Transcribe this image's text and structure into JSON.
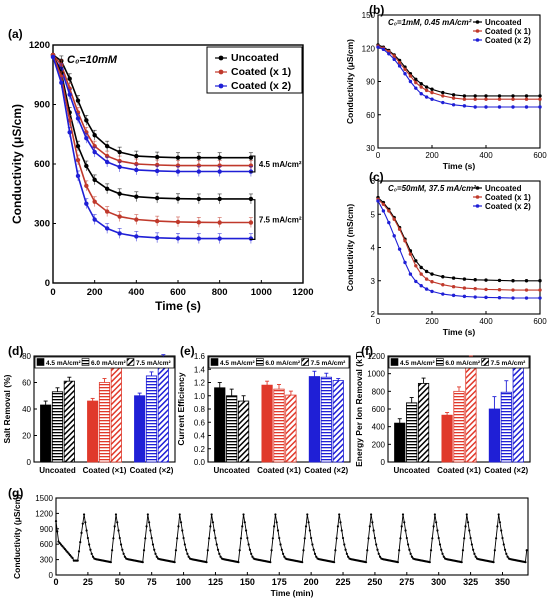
{
  "chart_data": [
    {
      "id": "a",
      "panel_label": "(a)",
      "type": "line",
      "xlabel": "Time (s)",
      "ylabel": "Conductivity (μS/cm)",
      "xlim": [
        0,
        1200
      ],
      "ylim": [
        0,
        1200
      ],
      "xticks": [
        0,
        200,
        400,
        600,
        800,
        1000,
        1200
      ],
      "yticks": [
        0,
        300,
        600,
        900,
        1200
      ],
      "annotation": "C₀=10mM",
      "legend": {
        "placement": "top-right",
        "entries": [
          "Uncoated",
          "Coated (x 1)",
          "Coated (x 2)"
        ]
      },
      "brackets": [
        {
          "label": "4.5 mA/cm²",
          "y_range": [
            560,
            640
          ]
        },
        {
          "label": "7.5 mA/cm²",
          "y_range": [
            220,
            420
          ]
        }
      ],
      "series": [
        {
          "name": "Uncoated",
          "color": "#000000",
          "group": "4.5 mA/cm²",
          "x": [
            0,
            40,
            80,
            120,
            160,
            200,
            260,
            320,
            400,
            500,
            600,
            700,
            800,
            950
          ],
          "y": [
            1150,
            1120,
            1030,
            920,
            820,
            745,
            690,
            660,
            640,
            635,
            632,
            632,
            632,
            632
          ]
        },
        {
          "name": "Coated (x 1)",
          "color": "#c0392b",
          "group": "4.5 mA/cm²",
          "x": [
            0,
            40,
            80,
            120,
            160,
            200,
            260,
            320,
            400,
            500,
            600,
            700,
            800,
            950
          ],
          "y": [
            1150,
            1100,
            980,
            860,
            760,
            690,
            640,
            615,
            600,
            595,
            592,
            592,
            592,
            592
          ]
        },
        {
          "name": "Coated (x 2)",
          "color": "#1f1fd6",
          "group": "4.5 mA/cm²",
          "x": [
            0,
            40,
            80,
            120,
            160,
            200,
            260,
            320,
            400,
            500,
            600,
            700,
            800,
            950
          ],
          "y": [
            1140,
            1080,
            950,
            830,
            730,
            660,
            610,
            585,
            570,
            565,
            562,
            562,
            562,
            562
          ]
        },
        {
          "name": "Uncoated",
          "color": "#000000",
          "group": "7.5 mA/cm²",
          "x": [
            0,
            40,
            80,
            120,
            160,
            200,
            260,
            320,
            400,
            500,
            600,
            700,
            800,
            950
          ],
          "y": [
            1150,
            1060,
            860,
            690,
            590,
            520,
            475,
            450,
            435,
            428,
            425,
            424,
            424,
            424
          ]
        },
        {
          "name": "Coated (x 1)",
          "color": "#c0392b",
          "group": "7.5 mA/cm²",
          "x": [
            0,
            40,
            80,
            120,
            160,
            200,
            260,
            320,
            400,
            500,
            600,
            700,
            800,
            950
          ],
          "y": [
            1150,
            1040,
            820,
            620,
            490,
            410,
            360,
            335,
            320,
            312,
            308,
            306,
            305,
            305
          ]
        },
        {
          "name": "Coated (x 2)",
          "color": "#1f1fd6",
          "group": "7.5 mA/cm²",
          "x": [
            0,
            40,
            80,
            120,
            160,
            200,
            260,
            320,
            400,
            500,
            600,
            700,
            800,
            950
          ],
          "y": [
            1140,
            1010,
            760,
            540,
            400,
            320,
            275,
            250,
            235,
            228,
            225,
            224,
            224,
            224
          ]
        }
      ]
    },
    {
      "id": "b",
      "panel_label": "(b)",
      "type": "line",
      "xlabel": "Time (s)",
      "ylabel": "Conductivity (μS/cm)",
      "xlim": [
        0,
        600
      ],
      "ylim": [
        30,
        150
      ],
      "xticks": [
        0,
        200,
        400,
        600
      ],
      "yticks": [
        30,
        60,
        90,
        120,
        150
      ],
      "annotation": "C₀=1mM, 0.45 mA/cm²",
      "legend": {
        "placement": "top-right",
        "entries": [
          "Uncoated",
          "Coated (x 1)",
          "Coated (x 2)"
        ]
      },
      "series": [
        {
          "name": "Uncoated",
          "color": "#000000",
          "x": [
            0,
            20,
            40,
            60,
            80,
            100,
            120,
            140,
            160,
            180,
            200,
            240,
            280,
            320,
            360,
            400,
            450,
            500,
            550,
            600
          ],
          "y": [
            123,
            121,
            118,
            114,
            109,
            103,
            97,
            92,
            88,
            85,
            83,
            80,
            78,
            77,
            77,
            77,
            77,
            77,
            77,
            77
          ]
        },
        {
          "name": "Coated (x 1)",
          "color": "#c0392b",
          "x": [
            0,
            20,
            40,
            60,
            80,
            100,
            120,
            140,
            160,
            180,
            200,
            240,
            280,
            320,
            360,
            400,
            450,
            500,
            550,
            600
          ],
          "y": [
            122,
            120,
            117,
            113,
            107,
            101,
            95,
            89,
            85,
            82,
            80,
            77,
            75,
            74,
            74,
            74,
            74,
            74,
            74,
            74
          ]
        },
        {
          "name": "Coated (x 2)",
          "color": "#1f1fd6",
          "x": [
            0,
            20,
            40,
            60,
            80,
            100,
            120,
            140,
            160,
            180,
            200,
            240,
            280,
            320,
            360,
            400,
            450,
            500,
            550,
            600
          ],
          "y": [
            121,
            119,
            115,
            110,
            104,
            97,
            90,
            84,
            79,
            76,
            74,
            71,
            69,
            68,
            67,
            67,
            67,
            67,
            67,
            67
          ]
        }
      ]
    },
    {
      "id": "c",
      "panel_label": "(c)",
      "type": "line",
      "xlabel": "Time (s)",
      "ylabel": "Conductivity (mS/cm)",
      "xlim": [
        0,
        600
      ],
      "ylim": [
        2,
        6
      ],
      "xticks": [
        0,
        200,
        400,
        600
      ],
      "yticks": [
        2,
        3,
        4,
        5,
        6
      ],
      "annotation": "C₀=50mM, 37.5 mA/cm²",
      "legend": {
        "placement": "top-right",
        "entries": [
          "Uncoated",
          "Coated (x 1)",
          "Coated (x 2)"
        ]
      },
      "series": [
        {
          "name": "Uncoated",
          "color": "#000000",
          "x": [
            0,
            20,
            40,
            60,
            80,
            100,
            120,
            140,
            160,
            180,
            200,
            240,
            280,
            320,
            360,
            400,
            450,
            500,
            550,
            600
          ],
          "y": [
            5.5,
            5.35,
            5.15,
            4.9,
            4.6,
            4.25,
            3.9,
            3.6,
            3.4,
            3.28,
            3.2,
            3.12,
            3.08,
            3.05,
            3.03,
            3.02,
            3.01,
            3.0,
            3.0,
            3.0
          ]
        },
        {
          "name": "Coated (x 1)",
          "color": "#c0392b",
          "x": [
            0,
            20,
            40,
            60,
            80,
            100,
            120,
            140,
            160,
            180,
            200,
            240,
            280,
            320,
            360,
            400,
            450,
            500,
            550,
            600
          ],
          "y": [
            5.45,
            5.3,
            5.1,
            4.85,
            4.55,
            4.2,
            3.8,
            3.45,
            3.2,
            3.05,
            2.97,
            2.88,
            2.82,
            2.78,
            2.76,
            2.74,
            2.73,
            2.72,
            2.72,
            2.72
          ]
        },
        {
          "name": "Coated (x 2)",
          "color": "#1f1fd6",
          "x": [
            0,
            20,
            40,
            60,
            80,
            100,
            120,
            140,
            160,
            180,
            200,
            240,
            280,
            320,
            360,
            400,
            450,
            500,
            550,
            600
          ],
          "y": [
            5.4,
            5.1,
            4.75,
            4.35,
            3.95,
            3.55,
            3.2,
            2.98,
            2.85,
            2.75,
            2.68,
            2.6,
            2.56,
            2.53,
            2.51,
            2.5,
            2.49,
            2.48,
            2.48,
            2.48
          ]
        }
      ]
    },
    {
      "id": "d",
      "panel_label": "(d)",
      "type": "bar",
      "ylabel": "Salt Removal (%)",
      "ylim": [
        0,
        80
      ],
      "yticks": [
        0,
        20,
        40,
        60,
        80
      ],
      "categories": [
        "Uncoated",
        "Coated (×1)",
        "Coated (×2)"
      ],
      "legend": {
        "placement": "top",
        "entries": [
          "4.5 mA/cm²",
          "6.0 mA/cm²",
          "7.5 mA/cm²"
        ]
      },
      "series": [
        {
          "name": "4.5 mA/cm²",
          "pattern": "solid",
          "values": [
            43,
            46,
            50
          ],
          "errors": [
            3,
            2,
            2
          ]
        },
        {
          "name": "6.0 mA/cm²",
          "pattern": "horizontal",
          "values": [
            53,
            60,
            65
          ],
          "errors": [
            3,
            3,
            3
          ]
        },
        {
          "name": "7.5 mA/cm²",
          "pattern": "diagonal",
          "values": [
            61,
            71,
            79
          ],
          "errors": [
            3,
            3,
            2
          ]
        }
      ]
    },
    {
      "id": "e",
      "panel_label": "(e)",
      "type": "bar",
      "ylabel": "Current Efficiency",
      "ylim": [
        0,
        1.6
      ],
      "yticks": [
        0,
        0.2,
        0.4,
        0.6,
        0.8,
        1.0,
        1.2,
        1.4,
        1.6
      ],
      "categories": [
        "Uncoated",
        "Coated (×1)",
        "Coated (×2)"
      ],
      "legend": {
        "placement": "top",
        "entries": [
          "4.5 mA/cm²",
          "6.0 mA/cm²",
          "7.5 mA/cm²"
        ]
      },
      "series": [
        {
          "name": "4.5 mA/cm²",
          "pattern": "solid",
          "values": [
            1.12,
            1.16,
            1.29
          ],
          "errors": [
            0.08,
            0.06,
            0.08
          ]
        },
        {
          "name": "6.0 mA/cm²",
          "pattern": "horizontal",
          "values": [
            1.0,
            1.1,
            1.28
          ],
          "errors": [
            0.1,
            0.07,
            0.06
          ]
        },
        {
          "name": "7.5 mA/cm²",
          "pattern": "diagonal",
          "values": [
            0.92,
            1.01,
            1.23
          ],
          "errors": [
            0.08,
            0.06,
            0.03
          ]
        }
      ]
    },
    {
      "id": "f",
      "panel_label": "(f)",
      "type": "bar",
      "ylabel": "Energy Per Ion Removal (kT)",
      "ylim": [
        0,
        1200
      ],
      "yticks": [
        0,
        200,
        400,
        600,
        800,
        1000,
        1200
      ],
      "categories": [
        "Uncoated",
        "Coated (×1)",
        "Coated (×2)"
      ],
      "legend": {
        "placement": "top",
        "entries": [
          "4.5 mA/cm²",
          "6.0 mA/cm²",
          "7.5 mA/cm²"
        ]
      },
      "series": [
        {
          "name": "4.5 mA/cm²",
          "pattern": "solid",
          "values": [
            440,
            530,
            600
          ],
          "errors": [
            50,
            30,
            140
          ]
        },
        {
          "name": "6.0 mA/cm²",
          "pattern": "horizontal",
          "values": [
            670,
            800,
            790
          ],
          "errors": [
            60,
            50,
            130
          ]
        },
        {
          "name": "7.5 mA/cm²",
          "pattern": "diagonal",
          "values": [
            890,
            1140,
            1090
          ],
          "errors": [
            60,
            60,
            90
          ]
        }
      ]
    },
    {
      "id": "g",
      "panel_label": "(g)",
      "type": "line",
      "xlabel": "Time (min)",
      "ylabel": "Conductivity (μS/cm)",
      "xlim": [
        0,
        370
      ],
      "ylim": [
        0,
        1500
      ],
      "xticks": [
        0,
        25,
        50,
        75,
        100,
        125,
        150,
        175,
        200,
        225,
        250,
        275,
        300,
        325,
        350
      ],
      "yticks": [
        0,
        300,
        600,
        900,
        1200,
        1500
      ],
      "cycle": {
        "count": 14,
        "period_min": 25,
        "first_peak_min": 22,
        "max": 1180,
        "min": 250
      },
      "series": [
        {
          "name": "",
          "color": "#000000"
        }
      ]
    }
  ]
}
